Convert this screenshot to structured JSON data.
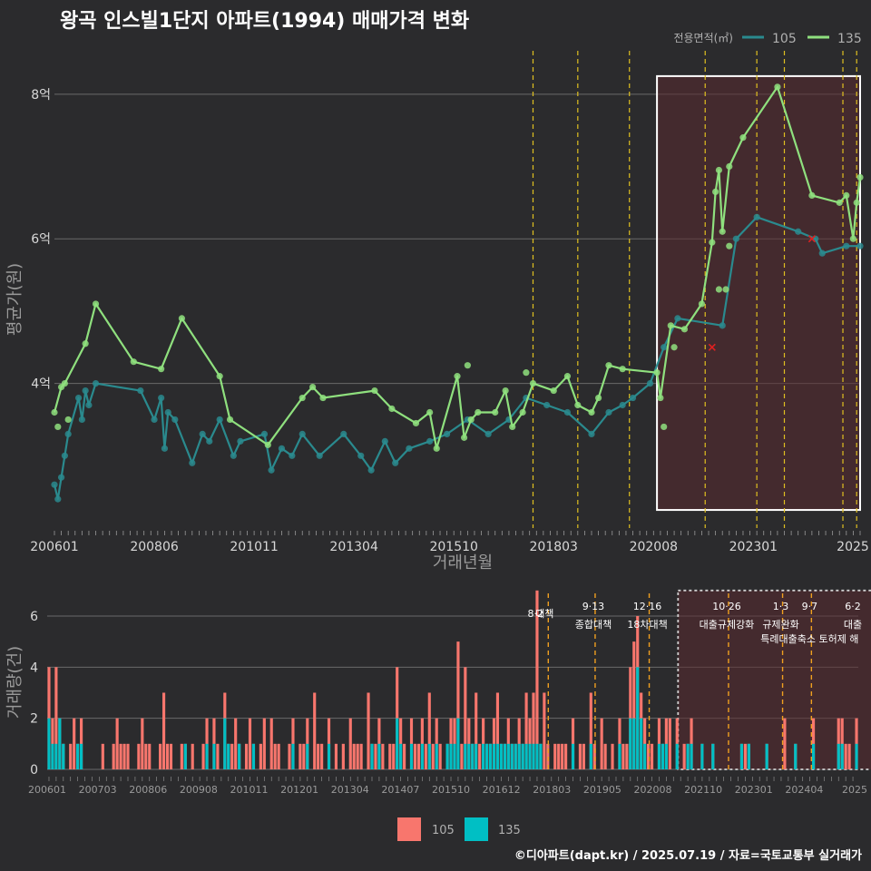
{
  "title": "왕곡 인스빌1단지 아파트(1994) 매매가격 변화",
  "footer": "©디아파트(dapt.kr) / 2025.07.19 / 자료=국토교통부 실거래가",
  "colors": {
    "background": "#2b2b2d",
    "s105_price": "#2a8a8e",
    "s135_price": "#8fe07e",
    "s105_vol": "#f8766d",
    "s135_vol": "#00bfc4",
    "policy_line": "#e0c020",
    "highlight_fill": "#5a2a30",
    "anomaly": "#e02020"
  },
  "chart_data": [
    {
      "type": "line",
      "xlabel": "거래년월",
      "ylabel": "평균가(원)",
      "x_tick_labels": [
        "200601",
        "200806",
        "201011",
        "201304",
        "201510",
        "201803",
        "202008",
        "202301",
        "2025"
      ],
      "y_tick_labels": [
        "4억",
        "6억",
        "8억"
      ],
      "y_ticks": [
        4,
        6,
        8
      ],
      "ylim": [
        2.0,
        8.6
      ],
      "x_range": [
        "2006-01",
        "2025-07"
      ],
      "legend": {
        "title": "전용면적(㎡)",
        "position": "top-right",
        "entries": [
          "105",
          "135"
        ]
      },
      "highlight_box": {
        "x": [
          "2020-08",
          "2025-07"
        ],
        "y": [
          2.25,
          8.25
        ]
      },
      "policy_dates": [
        "2017-08",
        "2018-09",
        "2019-12",
        "2021-10",
        "2023-01",
        "2023-09",
        "2025-02",
        "2025-06"
      ],
      "anomalies": [
        {
          "x": "2021-12",
          "y": 4.5
        },
        {
          "x": "2024-05",
          "y": 6.0
        }
      ],
      "series": [
        {
          "name": "105",
          "points": [
            [
              "2006-01",
              2.6
            ],
            [
              "2006-02",
              2.4
            ],
            [
              "2006-03",
              2.7
            ],
            [
              "2006-04",
              3.0
            ],
            [
              "2006-05",
              3.3
            ],
            [
              "2006-08",
              3.8
            ],
            [
              "2006-09",
              3.5
            ],
            [
              "2006-10",
              3.9
            ],
            [
              "2006-11",
              3.7
            ],
            [
              "2007-01",
              4.0
            ],
            [
              "2008-02",
              3.9
            ],
            [
              "2008-06",
              3.5
            ],
            [
              "2008-08",
              3.8
            ],
            [
              "2008-09",
              3.1
            ],
            [
              "2008-10",
              3.6
            ],
            [
              "2008-12",
              3.5
            ],
            [
              "2009-05",
              2.9
            ],
            [
              "2009-08",
              3.3
            ],
            [
              "2009-10",
              3.2
            ],
            [
              "2010-01",
              3.5
            ],
            [
              "2010-05",
              3.0
            ],
            [
              "2010-07",
              3.2
            ],
            [
              "2011-02",
              3.3
            ],
            [
              "2011-04",
              2.8
            ],
            [
              "2011-07",
              3.1
            ],
            [
              "2011-10",
              3.0
            ],
            [
              "2012-01",
              3.3
            ],
            [
              "2012-06",
              3.0
            ],
            [
              "2013-01",
              3.3
            ],
            [
              "2013-06",
              3.0
            ],
            [
              "2013-09",
              2.8
            ],
            [
              "2014-01",
              3.2
            ],
            [
              "2014-04",
              2.9
            ],
            [
              "2014-08",
              3.1
            ],
            [
              "2015-02",
              3.2
            ],
            [
              "2015-07",
              3.3
            ],
            [
              "2016-01",
              3.5
            ],
            [
              "2016-07",
              3.3
            ],
            [
              "2017-01",
              3.5
            ],
            [
              "2017-06",
              3.8
            ],
            [
              "2017-12",
              3.7
            ],
            [
              "2018-06",
              3.6
            ],
            [
              "2019-01",
              3.3
            ],
            [
              "2019-06",
              3.6
            ],
            [
              "2019-10",
              3.7
            ],
            [
              "2020-01",
              3.8
            ],
            [
              "2020-06",
              4.0
            ],
            [
              "2020-10",
              4.5
            ],
            [
              "2021-02",
              4.9
            ],
            [
              "2022-03",
              4.8
            ],
            [
              "2022-07",
              6.0
            ],
            [
              "2023-01",
              6.3
            ],
            [
              "2024-01",
              6.1
            ],
            [
              "2024-06",
              6.0
            ],
            [
              "2024-08",
              5.8
            ],
            [
              "2025-03",
              5.9
            ],
            [
              "2025-07",
              5.9
            ]
          ]
        },
        {
          "name": "135",
          "points": [
            [
              "2006-01",
              3.6
            ],
            [
              "2006-03",
              3.95
            ],
            [
              "2006-04",
              4.0
            ],
            [
              "2006-10",
              4.55
            ],
            [
              "2007-01",
              5.1
            ],
            [
              "2007-12",
              4.3
            ],
            [
              "2008-08",
              4.2
            ],
            [
              "2009-02",
              4.9
            ],
            [
              "2010-01",
              4.1
            ],
            [
              "2010-04",
              3.5
            ],
            [
              "2011-03",
              3.15
            ],
            [
              "2012-01",
              3.8
            ],
            [
              "2012-04",
              3.95
            ],
            [
              "2012-07",
              3.8
            ],
            [
              "2013-10",
              3.9
            ],
            [
              "2014-03",
              3.65
            ],
            [
              "2014-10",
              3.45
            ],
            [
              "2015-02",
              3.6
            ],
            [
              "2015-04",
              3.1
            ],
            [
              "2015-10",
              4.1
            ],
            [
              "2015-12",
              3.25
            ],
            [
              "2016-02",
              3.5
            ],
            [
              "2016-04",
              3.6
            ],
            [
              "2016-09",
              3.6
            ],
            [
              "2016-12",
              3.9
            ],
            [
              "2017-02",
              3.4
            ],
            [
              "2017-05",
              3.6
            ],
            [
              "2017-08",
              4.0
            ],
            [
              "2018-02",
              3.9
            ],
            [
              "2018-06",
              4.1
            ],
            [
              "2018-09",
              3.7
            ],
            [
              "2019-01",
              3.6
            ],
            [
              "2019-03",
              3.8
            ],
            [
              "2019-06",
              4.25
            ],
            [
              "2019-10",
              4.2
            ],
            [
              "2020-08",
              4.15
            ],
            [
              "2020-09",
              3.8
            ],
            [
              "2020-12",
              4.8
            ],
            [
              "2021-04",
              4.75
            ],
            [
              "2021-09",
              5.1
            ],
            [
              "2021-12",
              5.95
            ],
            [
              "2022-01",
              6.65
            ],
            [
              "2022-02",
              6.95
            ],
            [
              "2022-03",
              6.1
            ],
            [
              "2022-05",
              7.0
            ],
            [
              "2022-09",
              7.4
            ],
            [
              "2023-07",
              8.1
            ],
            [
              "2024-05",
              6.6
            ],
            [
              "2025-01",
              6.5
            ],
            [
              "2025-03",
              6.6
            ],
            [
              "2025-05",
              6.0
            ],
            [
              "2025-06",
              6.5
            ],
            [
              "2025-07",
              6.85
            ]
          ],
          "extra_points": [
            [
              "2006-02",
              3.4
            ],
            [
              "2006-05",
              3.5
            ],
            [
              "2016-01",
              4.25
            ],
            [
              "2017-06",
              4.15
            ],
            [
              "2020-10",
              3.4
            ],
            [
              "2021-01",
              4.5
            ],
            [
              "2022-02",
              5.3
            ],
            [
              "2022-04",
              5.3
            ],
            [
              "2022-05",
              5.9
            ]
          ]
        }
      ]
    },
    {
      "type": "bar",
      "ylabel": "거래량(건)",
      "y_tick_labels": [
        "0",
        "2",
        "4",
        "6"
      ],
      "y_ticks": [
        0,
        2,
        4,
        6
      ],
      "ylim": [
        0,
        7.1
      ],
      "x_tick_labels": [
        "200601",
        "200703",
        "200806",
        "200908",
        "201011",
        "201201",
        "201304",
        "201407",
        "201510",
        "201612",
        "201803",
        "201905",
        "202008",
        "202110",
        "202301",
        "202404",
        "2025"
      ],
      "legend": {
        "position": "bottom",
        "entries": [
          "105",
          "135"
        ]
      },
      "highlight_box": {
        "x": [
          "2020-08",
          "2025-07"
        ],
        "y": [
          0,
          7.0
        ]
      },
      "policy_annotations": [
        {
          "x": "2017-08",
          "label": "8·2 대책"
        },
        {
          "x": "2018-09",
          "label": "9·13 종합대책"
        },
        {
          "x": "2019-12",
          "label": "12·16 18차대책"
        },
        {
          "x": "2021-10",
          "label": "10·26 대출규제강화"
        },
        {
          "x": "2023-01",
          "label": "1·3 규제완화"
        },
        {
          "x": "2023-09",
          "label": "9·7 특례대출축소 토허제 해"
        },
        {
          "x": "2025-06",
          "label": "6·2 대출"
        }
      ],
      "series": [
        {
          "name": "105",
          "values": [
            4,
            2,
            4,
            2,
            1,
            0,
            1,
            2,
            1,
            2,
            0,
            0,
            0,
            0,
            0,
            1,
            0,
            0,
            1,
            2,
            1,
            1,
            1,
            0,
            0,
            1,
            2,
            1,
            1,
            0,
            0,
            1,
            3,
            1,
            1,
            0,
            0,
            1,
            1,
            0,
            1,
            0,
            0,
            1,
            2,
            0,
            2,
            1,
            0,
            3,
            1,
            1,
            2,
            1,
            0,
            1,
            2,
            1,
            0,
            1,
            2,
            0,
            2,
            1,
            1,
            0,
            0,
            1,
            2,
            0,
            1,
            1,
            2,
            0,
            3,
            1,
            1,
            0,
            2,
            0,
            1,
            0,
            1,
            0,
            2,
            1,
            1,
            1,
            0,
            3,
            1,
            1,
            2,
            1,
            0,
            1,
            1,
            4,
            2,
            1,
            0,
            2,
            1,
            1,
            2,
            1,
            3,
            1,
            2,
            1,
            0,
            1,
            2,
            2,
            5,
            1,
            4,
            2,
            1,
            3,
            1,
            2,
            1,
            1,
            2,
            3,
            1,
            1,
            2,
            1,
            1,
            2,
            1,
            3,
            2,
            3,
            7,
            1,
            3,
            1,
            0,
            1,
            1,
            1,
            1,
            0,
            2,
            0,
            1,
            1,
            0,
            3,
            1,
            0,
            2,
            1,
            0,
            1,
            0,
            2,
            1,
            1,
            4,
            5,
            6,
            3,
            2,
            1,
            1,
            0,
            2,
            1,
            2,
            2,
            0,
            2,
            0,
            1,
            1,
            2,
            0,
            0,
            1,
            0,
            0,
            1,
            0,
            0,
            0,
            0,
            0,
            0,
            0,
            1,
            1,
            1,
            0,
            0,
            0,
            0,
            1,
            0,
            0,
            0,
            0,
            2,
            0,
            0,
            1,
            0,
            0,
            0,
            0,
            2,
            0,
            0,
            0,
            0,
            0,
            0,
            2,
            2,
            1,
            1,
            0,
            2
          ],
          "values_note_first_month": "2006-01"
        },
        {
          "name": "135",
          "values": [
            2,
            1,
            1,
            2,
            1,
            0,
            0,
            0,
            1,
            1,
            0,
            0,
            0,
            0,
            0,
            0,
            0,
            0,
            0,
            0,
            0,
            0,
            0,
            0,
            0,
            0,
            0,
            0,
            0,
            0,
            0,
            0,
            0,
            0,
            0,
            0,
            0,
            0,
            1,
            0,
            0,
            0,
            0,
            0,
            1,
            0,
            1,
            0,
            0,
            2,
            1,
            0,
            0,
            1,
            0,
            0,
            0,
            1,
            0,
            0,
            0,
            0,
            0,
            0,
            0,
            0,
            0,
            0,
            1,
            0,
            0,
            0,
            1,
            0,
            0,
            0,
            0,
            0,
            1,
            0,
            0,
            0,
            0,
            0,
            0,
            0,
            0,
            0,
            0,
            0,
            1,
            0,
            1,
            0,
            0,
            0,
            0,
            2,
            1,
            0,
            0,
            1,
            0,
            0,
            1,
            0,
            1,
            0,
            1,
            0,
            0,
            1,
            1,
            1,
            2,
            0,
            1,
            1,
            1,
            1,
            0,
            1,
            1,
            1,
            1,
            1,
            1,
            1,
            1,
            1,
            1,
            1,
            1,
            1,
            1,
            1,
            1,
            1,
            0,
            0,
            0,
            0,
            0,
            0,
            0,
            0,
            1,
            0,
            0,
            0,
            0,
            1,
            0,
            0,
            0,
            0,
            0,
            0,
            0,
            1,
            0,
            0,
            2,
            2,
            4,
            2,
            1,
            0,
            0,
            0,
            1,
            1,
            1,
            0,
            0,
            1,
            0,
            0,
            1,
            1,
            0,
            0,
            1,
            0,
            0,
            1,
            0,
            0,
            0,
            0,
            0,
            0,
            0,
            1,
            0,
            1,
            0,
            0,
            0,
            0,
            1,
            0,
            0,
            0,
            0,
            0,
            0,
            0,
            1,
            0,
            0,
            0,
            0,
            1,
            0,
            0,
            0,
            0,
            0,
            0,
            1,
            1,
            0,
            0,
            0,
            1
          ]
        }
      ]
    }
  ]
}
